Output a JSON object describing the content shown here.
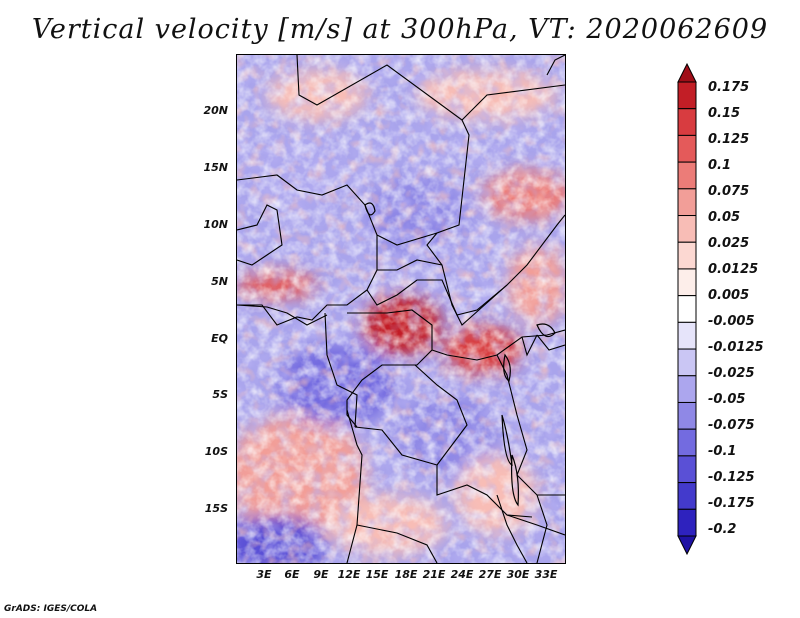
{
  "title": "Vertical velocity [m/s] at 300hPa, VT: 2020062609",
  "map": {
    "lat_labels": [
      "20N",
      "15N",
      "10N",
      "5N",
      "EQ",
      "5S",
      "10S",
      "15S"
    ],
    "lon_labels": [
      "3E",
      "6E",
      "9E",
      "12E",
      "15E",
      "18E",
      "21E",
      "24E",
      "27E",
      "30E",
      "33E"
    ],
    "field": "vertical velocity",
    "description_colors": {
      "upward": "#3b2fc8",
      "downward": "#c8262a",
      "neutral": "#ffffff"
    }
  },
  "colorbar": {
    "labels": [
      "0.175",
      "0.15",
      "0.125",
      "0.1",
      "0.075",
      "0.05",
      "0.025",
      "0.0125",
      "0.005",
      "-0.005",
      "-0.0125",
      "-0.025",
      "-0.05",
      "-0.075",
      "-0.1",
      "-0.125",
      "-0.175",
      "-0.2"
    ],
    "colors": [
      "#a00e18",
      "#c21e26",
      "#d83c40",
      "#e45a5a",
      "#ec7c78",
      "#f29e98",
      "#f8bdb6",
      "#fcd8d2",
      "#fdeeea",
      "#ffffff",
      "#e6e4fa",
      "#cac6f4",
      "#aca6ee",
      "#8f88e6",
      "#736be0",
      "#5a50d6",
      "#433acc",
      "#2e22be",
      "#1f12a4"
    ]
  },
  "credit": "GrADS: IGES/COLA"
}
